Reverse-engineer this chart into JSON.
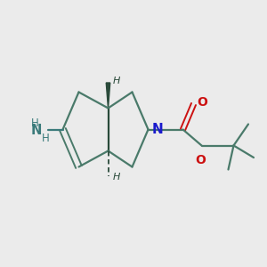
{
  "background_color": "#ebebeb",
  "bond_color": "#4a7a6a",
  "bond_color_dark": "#2a4a3a",
  "N_color": "#1a1acc",
  "O_color": "#cc1111",
  "NH2_color": "#3a7a7a",
  "figsize": [
    3.0,
    3.0
  ],
  "dpi": 100,
  "xlim": [
    0,
    10
  ],
  "ylim": [
    0,
    10
  ]
}
